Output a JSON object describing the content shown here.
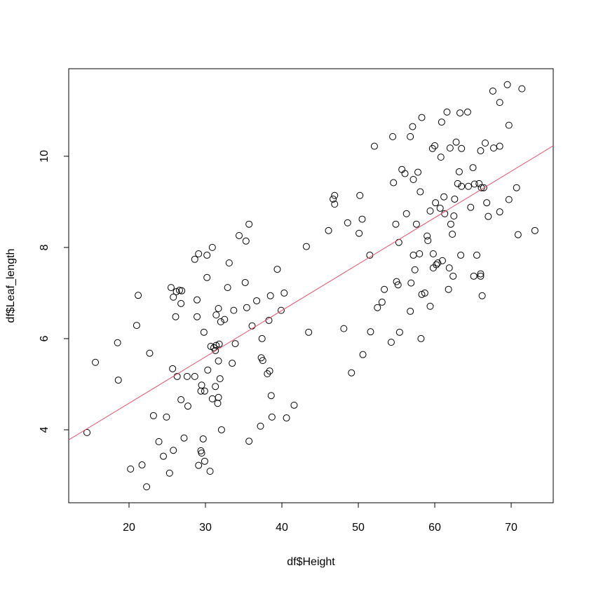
{
  "chart_data": {
    "type": "scatter",
    "xlabel": "df$Height",
    "ylabel": "df$Leaf_length",
    "xlim": [
      12.11,
      75.5
    ],
    "ylim": [
      2.4,
      11.92
    ],
    "xticks": [
      20,
      30,
      40,
      50,
      60,
      70
    ],
    "yticks": [
      4,
      6,
      8,
      10
    ],
    "color": "#000000",
    "x": [
      14.5,
      15.6,
      18.5,
      18.6,
      20.2,
      21.0,
      21.2,
      21.7,
      22.3,
      22.7,
      23.2,
      23.9,
      24.5,
      24.9,
      25.3,
      25.5,
      25.7,
      25.8,
      25.8,
      26.1,
      26.2,
      26.3,
      26.6,
      26.8,
      26.8,
      26.9,
      27.2,
      27.6,
      27.7,
      28.6,
      28.6,
      28.9,
      28.9,
      29.1,
      29.1,
      29.4,
      29.4,
      29.5,
      29.5,
      29.7,
      29.8,
      29.9,
      29.9,
      30.2,
      30.2,
      30.3,
      30.6,
      30.7,
      30.9,
      30.9,
      31.1,
      31.3,
      31.3,
      31.4,
      31.4,
      31.6,
      31.7,
      31.7,
      31.7,
      31.8,
      31.9,
      32.0,
      32.1,
      32.5,
      32.9,
      33.1,
      33.5,
      33.7,
      33.9,
      34.4,
      35.2,
      35.3,
      35.4,
      35.7,
      35.7,
      36.1,
      36.7,
      37.2,
      37.3,
      37.4,
      37.5,
      38.1,
      38.3,
      38.4,
      38.5,
      38.6,
      38.7,
      39.4,
      39.9,
      40.3,
      40.6,
      41.6,
      43.2,
      43.5,
      46.1,
      46.7,
      46.9,
      46.9,
      48.1,
      48.6,
      49.1,
      50.1,
      50.2,
      50.5,
      50.6,
      51.5,
      51.6,
      52.1,
      52.5,
      53.1,
      53.4,
      54.3,
      54.5,
      54.6,
      54.9,
      55.0,
      55.2,
      55.3,
      55.4,
      55.7,
      56.1,
      56.3,
      56.8,
      56.8,
      56.9,
      57.1,
      57.2,
      57.2,
      57.4,
      57.6,
      57.8,
      58.0,
      58.1,
      58.2,
      58.3,
      58.3,
      58.7,
      59.0,
      59.1,
      59.4,
      59.4,
      59.7,
      59.8,
      59.8,
      60.0,
      60.1,
      60.2,
      60.4,
      60.7,
      60.8,
      60.9,
      61.0,
      61.2,
      61.3,
      61.6,
      61.8,
      61.9,
      62.0,
      62.1,
      62.3,
      62.4,
      62.5,
      62.6,
      62.8,
      63.0,
      63.2,
      63.3,
      63.4,
      63.5,
      63.5,
      64.3,
      64.4,
      64.7,
      65.0,
      65.1,
      65.2,
      65.5,
      65.8,
      66.0,
      66.0,
      66.0,
      66.1,
      66.2,
      66.4,
      66.6,
      66.8,
      67.0,
      67.6,
      67.7,
      68.5,
      68.5,
      68.5,
      69.5,
      69.7,
      69.7,
      70.7,
      70.9,
      71.4,
      73.1
    ],
    "y": [
      3.94,
      5.48,
      5.91,
      5.09,
      3.14,
      6.29,
      6.95,
      3.23,
      2.75,
      5.68,
      4.31,
      3.74,
      3.42,
      4.28,
      3.05,
      7.12,
      5.34,
      6.91,
      3.55,
      6.48,
      7.03,
      5.17,
      7.06,
      6.77,
      4.66,
      7.05,
      3.82,
      5.17,
      4.52,
      5.17,
      7.74,
      6.85,
      6.48,
      7.86,
      3.22,
      3.54,
      4.85,
      4.98,
      3.49,
      3.8,
      6.14,
      4.85,
      3.31,
      7.83,
      7.34,
      5.31,
      3.09,
      5.83,
      8.0,
      4.68,
      5.8,
      5.74,
      4.95,
      6.52,
      5.85,
      4.58,
      4.71,
      5.51,
      6.66,
      5.88,
      5.12,
      6.37,
      4.0,
      6.42,
      7.12,
      7.66,
      5.46,
      6.62,
      5.89,
      8.26,
      7.23,
      8.14,
      6.68,
      8.51,
      3.75,
      6.28,
      6.83,
      4.08,
      5.58,
      6.0,
      5.52,
      5.23,
      6.4,
      5.29,
      6.94,
      4.75,
      4.28,
      7.52,
      6.62,
      7.0,
      4.26,
      4.54,
      8.02,
      6.14,
      8.37,
      9.06,
      9.14,
      8.95,
      6.22,
      8.54,
      5.25,
      8.31,
      9.14,
      8.62,
      5.65,
      7.83,
      6.15,
      10.22,
      6.68,
      6.8,
      7.08,
      5.92,
      10.43,
      9.42,
      8.51,
      7.25,
      7.18,
      8.11,
      6.14,
      9.71,
      9.62,
      8.74,
      10.43,
      6.6,
      7.22,
      10.65,
      7.83,
      9.49,
      7.51,
      8.51,
      9.65,
      7.86,
      9.22,
      6.0,
      10.85,
      6.97,
      7.0,
      8.25,
      8.15,
      8.8,
      6.71,
      10.17,
      7.86,
      7.55,
      10.23,
      8.98,
      7.62,
      7.66,
      8.86,
      9.98,
      10.75,
      7.71,
      9.11,
      8.74,
      10.97,
      7.08,
      7.55,
      10.18,
      8.51,
      8.29,
      7.37,
      8.69,
      9.06,
      10.31,
      9.4,
      9.66,
      10.95,
      7.83,
      10.17,
      9.34,
      10.97,
      9.34,
      8.88,
      9.75,
      7.37,
      9.39,
      7.83,
      9.4,
      7.37,
      7.42,
      10.12,
      9.31,
      6.94,
      9.31,
      10.29,
      8.98,
      8.68,
      11.43,
      10.18,
      11.18,
      8.78,
      10.22,
      11.57,
      10.68,
      9.05,
      9.31,
      8.28,
      11.48,
      8.37
    ],
    "fit_line": {
      "color": "#df536b",
      "x": [
        12.11,
        75.5
      ],
      "y": [
        3.78,
        10.23
      ]
    }
  }
}
